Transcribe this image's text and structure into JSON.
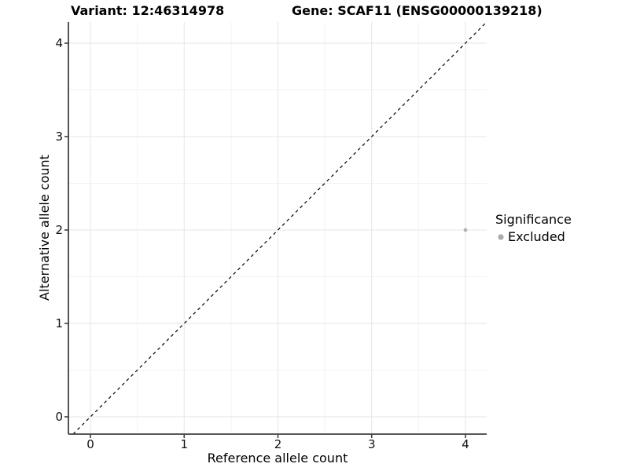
{
  "titles": {
    "variant": "Variant: 12:46314978",
    "gene": "Gene: SCAF11 (ENSG00000139218)"
  },
  "axes": {
    "x": {
      "label": "Reference allele count",
      "ticks": [
        "0",
        "1",
        "2",
        "3",
        "4"
      ]
    },
    "y": {
      "label": "Alternative allele count",
      "ticks": [
        "0",
        "1",
        "2",
        "3",
        "4"
      ]
    }
  },
  "legend": {
    "title": "Significance",
    "items": [
      {
        "label": "Excluded",
        "color": "#ababab"
      }
    ]
  },
  "colors": {
    "background": "#ffffff",
    "grid_major": "#e6e6e6",
    "grid_minor": "#f3f3f3",
    "axis_line": "#404040",
    "tick_mark": "#404040",
    "identity_line": "#000000",
    "point": "#b3b3b3",
    "text": "#000000"
  },
  "chart_data": {
    "type": "scatter",
    "title": "Variant: 12:46314978    Gene: SCAF11 (ENSG00000139218)",
    "xlabel": "Reference allele count",
    "ylabel": "Alternative allele count",
    "xlim": [
      -0.2,
      4.2
    ],
    "ylim": [
      -0.2,
      4.2
    ],
    "x_ticks": [
      0,
      1,
      2,
      3,
      4
    ],
    "y_ticks": [
      0,
      1,
      2,
      3,
      4
    ],
    "grid": "on",
    "minor_grid": "on",
    "legend_position": "right",
    "series": [
      {
        "name": "Excluded",
        "color": "#b3b3b3",
        "points": [
          [
            4,
            2
          ]
        ]
      }
    ],
    "annotations": [
      {
        "type": "identity-line",
        "equation": "y = x",
        "style": "dashed",
        "color": "#000000"
      }
    ]
  }
}
